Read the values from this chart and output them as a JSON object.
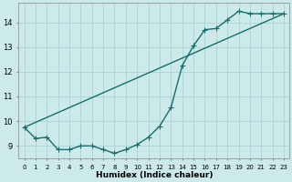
{
  "xlabel": "Humidex (Indice chaleur)",
  "background_color": "#cceaea",
  "line_color": "#1a6b6b",
  "grid_color": "#aad4d4",
  "xlim": [
    -0.5,
    23.5
  ],
  "ylim": [
    8.5,
    14.8
  ],
  "yticks": [
    9,
    10,
    11,
    12,
    13,
    14
  ],
  "xticks": [
    0,
    1,
    2,
    3,
    4,
    5,
    6,
    7,
    8,
    9,
    10,
    11,
    12,
    13,
    14,
    15,
    16,
    17,
    18,
    19,
    20,
    21,
    22,
    23
  ],
  "line1_x": [
    0,
    1,
    2,
    3,
    4,
    5,
    6,
    7,
    8,
    9,
    10,
    11,
    12,
    13,
    14,
    15,
    16,
    17,
    18,
    19,
    20,
    21,
    22,
    23
  ],
  "line1_y": [
    9.75,
    9.3,
    9.35,
    8.85,
    8.85,
    9.0,
    9.0,
    8.85,
    8.7,
    8.85,
    9.05,
    9.35,
    9.8,
    10.55,
    12.25,
    13.05,
    13.7,
    13.75,
    14.1,
    14.45,
    14.35,
    14.35,
    14.35,
    14.35
  ],
  "line2_x": [
    0,
    23
  ],
  "line2_y": [
    9.75,
    14.35
  ],
  "marker_size": 2.5,
  "linewidth": 1.0
}
